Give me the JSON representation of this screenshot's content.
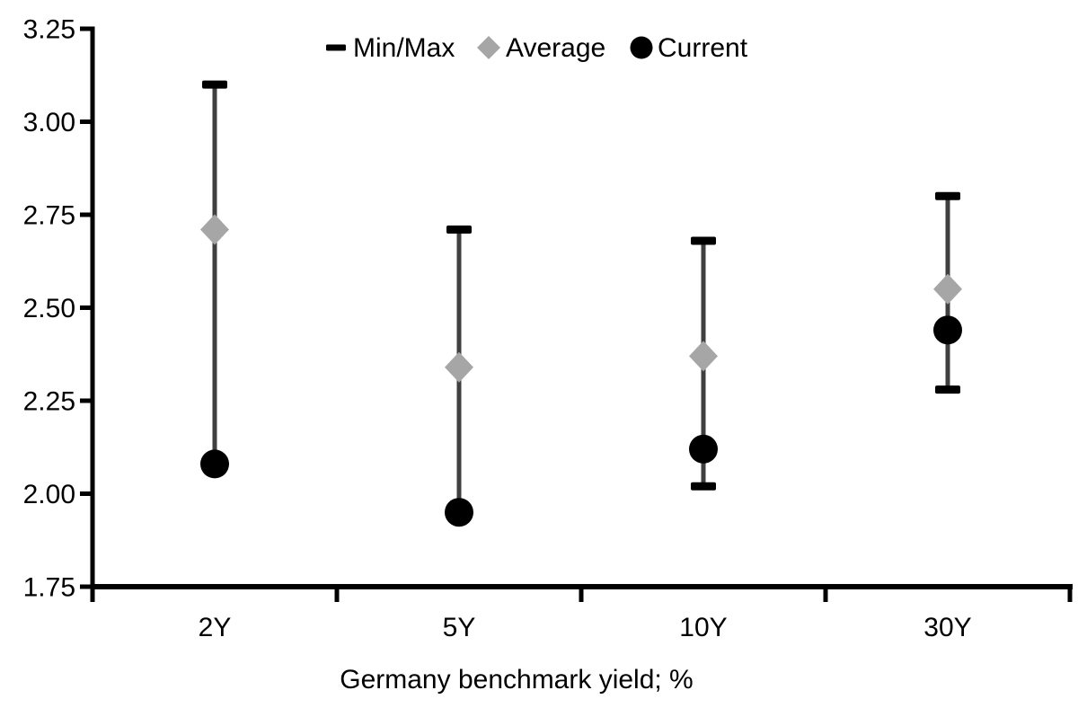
{
  "chart_data": {
    "type": "scatter",
    "subtype": "min-max-range-with-markers",
    "title": "",
    "xlabel": "Germany benchmark yield; %",
    "ylabel": "",
    "categories": [
      "2Y",
      "5Y",
      "10Y",
      "30Y"
    ],
    "series": [
      {
        "name": "Min/Max",
        "type": "range",
        "marker": "dash-cap",
        "min": [
          2.08,
          1.95,
          2.02,
          2.28
        ],
        "max": [
          3.1,
          2.71,
          2.68,
          2.8
        ]
      },
      {
        "name": "Average",
        "type": "point",
        "marker": "diamond",
        "values": [
          2.71,
          2.34,
          2.37,
          2.55
        ]
      },
      {
        "name": "Current",
        "type": "point",
        "marker": "circle",
        "values": [
          2.08,
          1.95,
          2.12,
          2.44
        ]
      }
    ],
    "ylim": [
      1.75,
      3.25
    ],
    "ytick_step": 0.25,
    "ytick_labels": [
      "3.25",
      "3.00",
      "2.75",
      "2.50",
      "2.25",
      "2.00",
      "1.75"
    ],
    "grid": false,
    "legend_position": "top-center",
    "legend_items": [
      {
        "label": "Min/Max",
        "marker": "dash",
        "color": "#000000"
      },
      {
        "label": "Average",
        "marker": "diamond",
        "color": "#a6a6a6"
      },
      {
        "label": "Current",
        "marker": "circle",
        "color": "#000000"
      }
    ],
    "colors": {
      "axis": "#000000",
      "range_line": "#3f3f3f",
      "range_cap": "#000000",
      "average_marker": "#a6a6a6",
      "current_marker": "#000000",
      "text": "#000000",
      "background": "#ffffff"
    }
  }
}
